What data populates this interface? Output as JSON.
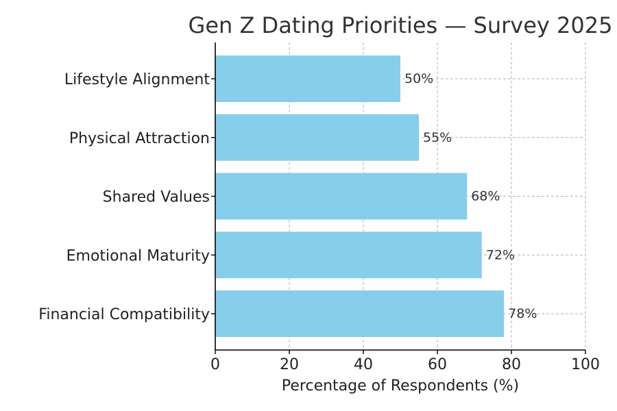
{
  "chart_data": {
    "type": "bar",
    "orientation": "horizontal",
    "title": "Gen Z Dating Priorities — Survey 2025",
    "xlabel": "Percentage of Respondents (%)",
    "ylabel": "",
    "categories": [
      "Financial Compatibility",
      "Emotional Maturity",
      "Shared Values",
      "Physical Attraction",
      "Lifestyle Alignment"
    ],
    "values": [
      78,
      72,
      68,
      55,
      50
    ],
    "value_labels": [
      "78%",
      "72%",
      "68%",
      "55%",
      "50%"
    ],
    "xlim": [
      0,
      100
    ],
    "xticks": [
      0,
      20,
      40,
      60,
      80,
      100
    ],
    "xtick_labels": [
      "0",
      "20",
      "40",
      "60",
      "80",
      "100"
    ],
    "grid": true,
    "legend": "none",
    "colors": {
      "bar": "#87CEEB",
      "grid": "#b0b0b0",
      "axis": "#000000",
      "title": "#333333",
      "text": "#222222"
    }
  }
}
